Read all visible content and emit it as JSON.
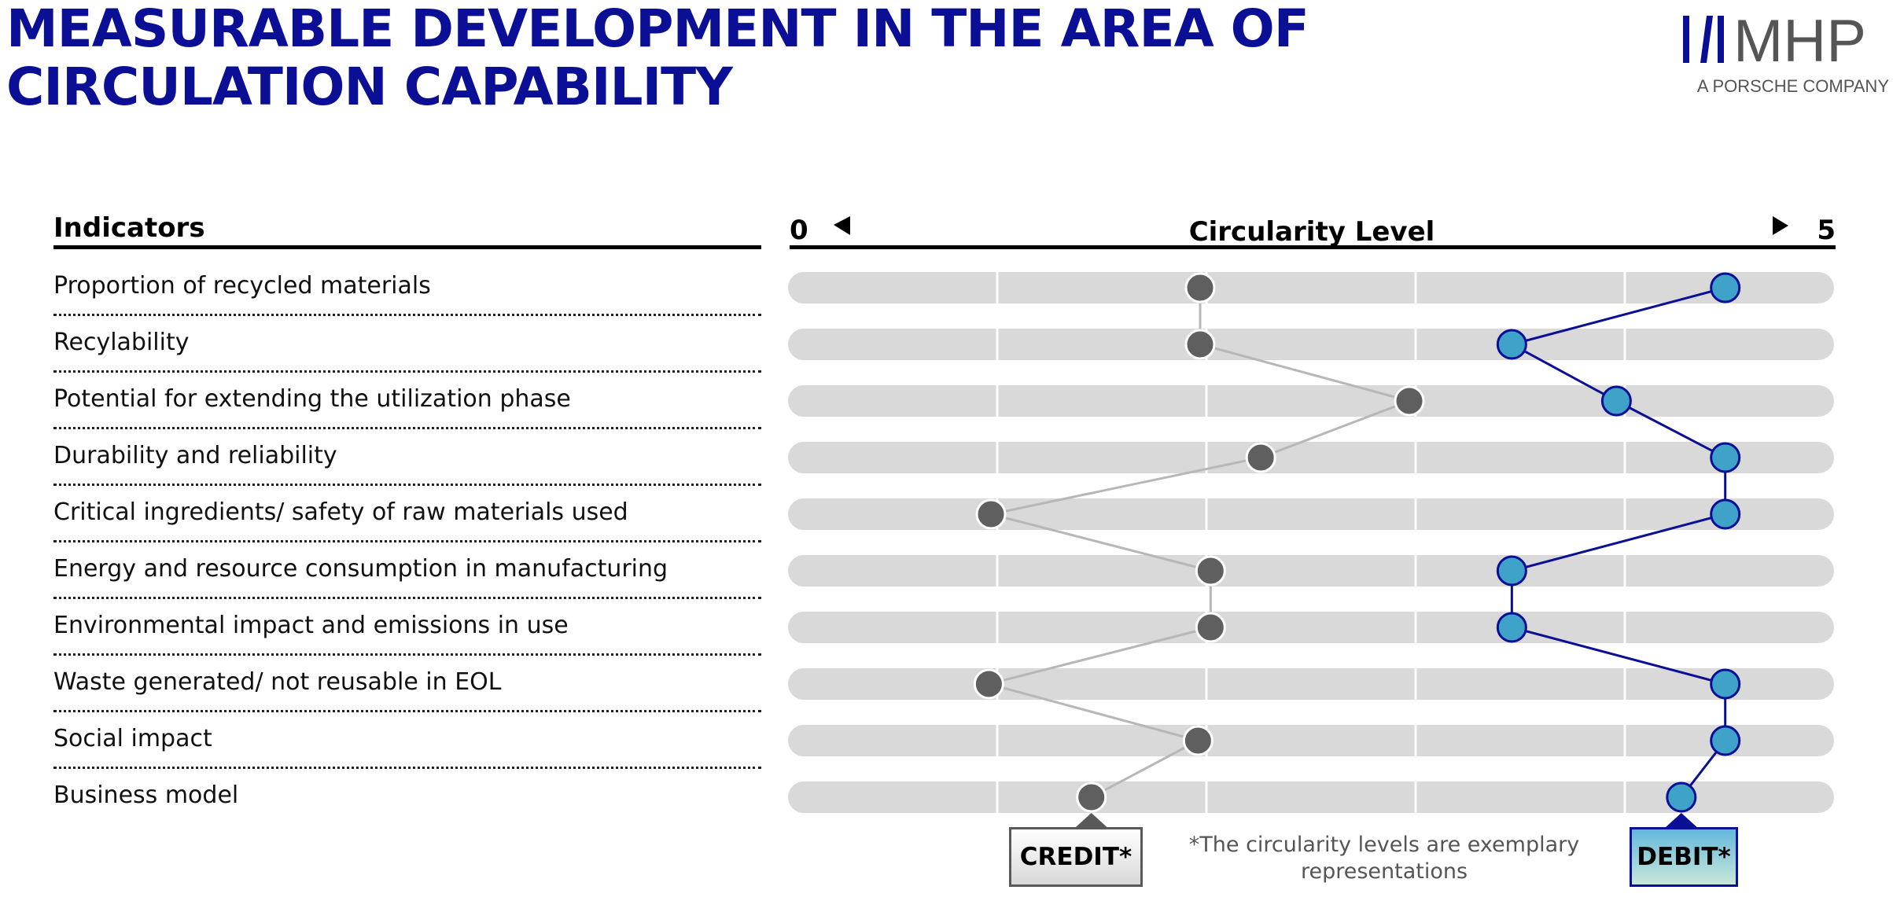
{
  "title": {
    "line1": "MEASURABLE DEVELOPMENT IN THE AREA OF",
    "line2": "CIRCULATION CAPABILITY"
  },
  "logo": {
    "mark": "MHP",
    "subtitle": "A PORSCHE COMPANY"
  },
  "colors": {
    "title": "#0a0f96",
    "credit_dot": "#5f5f5f",
    "credit_line": "#b7b7b7",
    "debit_dot": "#3fa3c9",
    "debit_line": "#0a0f96",
    "track": "#d9d9d9"
  },
  "indicators_header": "Indicators",
  "chart_data": {
    "type": "line",
    "title": "Circularity Level",
    "axis_min_label": "0",
    "axis_max_label": "5",
    "xlim": [
      0,
      5
    ],
    "categories": [
      "Proportion of recycled materials",
      "Recylability",
      "Potential for extending the utilization phase",
      "Durability and reliability",
      "Critical ingredients/ safety of raw materials used",
      "Energy and resource consumption in manufacturing",
      "Environmental impact and emissions in use",
      "Waste generated/ not reusable in EOL",
      "Social impact",
      "Business model"
    ],
    "series": [
      {
        "name": "CREDIT*",
        "values": [
          1.97,
          1.97,
          2.97,
          2.26,
          0.97,
          2.02,
          2.02,
          0.96,
          1.96,
          1.45
        ]
      },
      {
        "name": "DEBIT*",
        "values": [
          4.48,
          3.46,
          3.96,
          4.48,
          4.48,
          3.46,
          3.46,
          4.48,
          4.48,
          4.27
        ]
      }
    ],
    "grid": true
  },
  "tags": {
    "credit": "CREDIT*",
    "debit": "DEBIT*"
  },
  "footnote": {
    "line1": "*The circularity levels are exemplary",
    "line2": "representations"
  }
}
